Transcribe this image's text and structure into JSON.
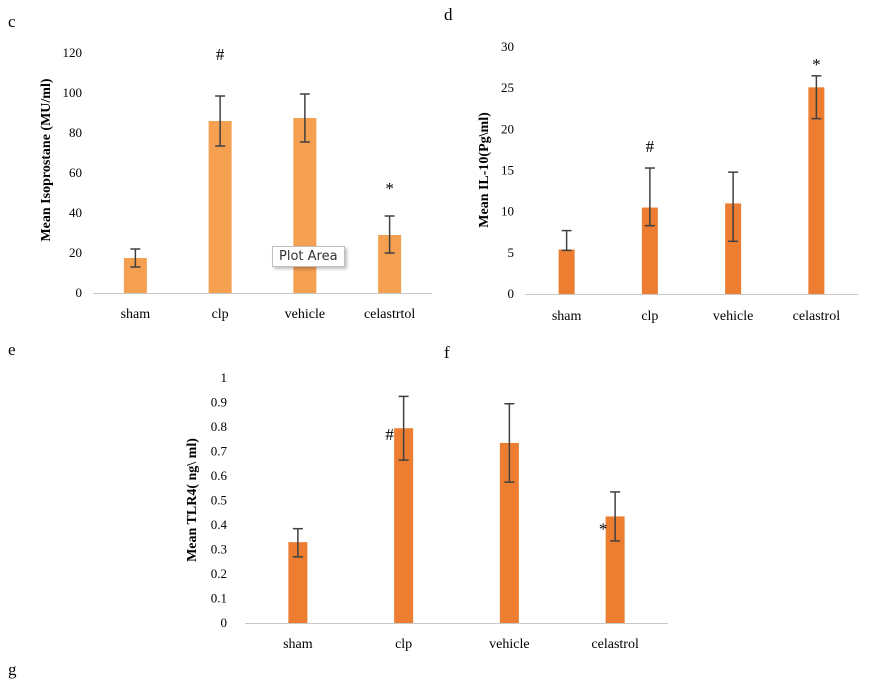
{
  "panel_letters": [
    "c",
    "d",
    "e",
    "f",
    "g"
  ],
  "tooltip": "Plot Area",
  "colors": {
    "bar_light": "#F5A050",
    "bar_dark": "#ED7D31",
    "axis": "#c8c8c8",
    "error": "#404040"
  },
  "chart_data": [
    {
      "type": "bar",
      "ylabel": "Mean Isoprostane (MU/ml)",
      "ylim": [
        0,
        120
      ],
      "ticks": [
        0,
        20,
        40,
        60,
        80,
        100,
        120
      ],
      "categories": [
        "sham",
        "clp",
        "vehicle",
        "celastrtol"
      ],
      "values": [
        17.5,
        86,
        87.5,
        29
      ],
      "error_low": [
        13,
        73.5,
        75.5,
        20
      ],
      "error_high": [
        22,
        98.5,
        99.5,
        38.5
      ],
      "annotations": [
        "",
        "#",
        "",
        "*"
      ],
      "grid": false
    },
    {
      "type": "bar",
      "ylabel": "Mean IL-10(Pg\\ml)",
      "ylim": [
        0,
        30
      ],
      "ticks": [
        0,
        5,
        10,
        15,
        20,
        25,
        30
      ],
      "categories": [
        "sham",
        "clp",
        "vehicle",
        "celastrol"
      ],
      "values": [
        5.4,
        10.5,
        11,
        25.1
      ],
      "error_low": [
        5.3,
        8.3,
        6.4,
        21.3
      ],
      "error_high": [
        7.7,
        15.3,
        14.8,
        26.5
      ],
      "annotations": [
        "",
        "#",
        "",
        "*"
      ],
      "grid": false
    },
    {
      "type": "bar",
      "ylabel": "Mean TLR4( ng\\ ml)",
      "ylim": [
        0,
        1
      ],
      "ticks": [
        "0",
        "0.1",
        "0.2",
        "0.3",
        "0.4",
        "0.5",
        "0.6",
        "0.7",
        "0.8",
        "0.9",
        "1"
      ],
      "categories": [
        "sham",
        "clp",
        "vehicle",
        "celastrol"
      ],
      "values": [
        0.33,
        0.795,
        0.735,
        0.435
      ],
      "error_low": [
        0.27,
        0.665,
        0.575,
        0.335
      ],
      "error_high": [
        0.385,
        0.925,
        0.895,
        0.535
      ],
      "annotations": [
        "",
        "#",
        "",
        "*"
      ],
      "grid": false
    }
  ]
}
